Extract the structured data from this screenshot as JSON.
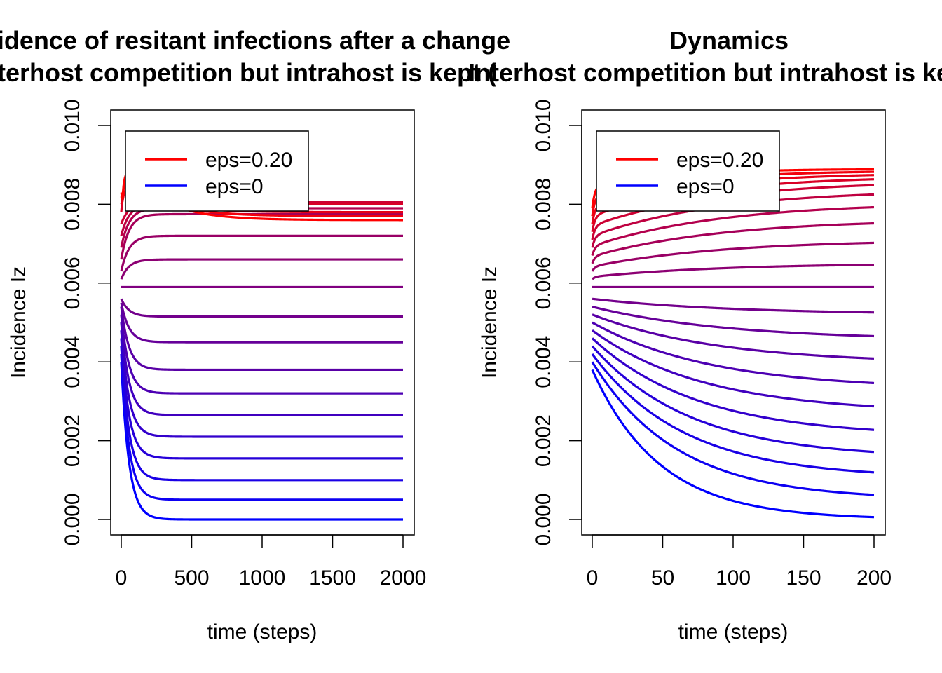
{
  "chart_data": [
    {
      "type": "line",
      "title_line1": "Incidence of resitant infections after a change",
      "title_line2": "Interhost competition but intrahost is kept (",
      "xlabel": "time (steps)",
      "ylabel": "Incidence Iz",
      "xlim": [
        0,
        2000
      ],
      "ylim": [
        0,
        0.01
      ],
      "x_ticks": [
        "0",
        "500",
        "1000",
        "1500",
        "2000"
      ],
      "x_tick_values": [
        0,
        500,
        1000,
        1500,
        2000
      ],
      "y_ticks": [
        "0.000",
        "0.002",
        "0.004",
        "0.006",
        "0.008",
        "0.010"
      ],
      "y_tick_values": [
        0,
        0.002,
        0.004,
        0.006,
        0.008,
        0.01
      ],
      "grid": false,
      "legend_position": "top-left",
      "legend": [
        {
          "label": "eps=0.20",
          "color": "#ff0000"
        },
        {
          "label": "eps=0",
          "color": "#0000ff"
        }
      ],
      "tau": 55,
      "series": [
        {
          "eps_index": 0,
          "start": 0.004,
          "end": 0.0
        },
        {
          "eps_index": 1,
          "start": 0.0042,
          "end": 0.0005
        },
        {
          "eps_index": 2,
          "start": 0.0044,
          "end": 0.001
        },
        {
          "eps_index": 3,
          "start": 0.0046,
          "end": 0.00155
        },
        {
          "eps_index": 4,
          "start": 0.0048,
          "end": 0.0021
        },
        {
          "eps_index": 5,
          "start": 0.005,
          "end": 0.00265
        },
        {
          "eps_index": 6,
          "start": 0.0052,
          "end": 0.0032
        },
        {
          "eps_index": 7,
          "start": 0.0054,
          "end": 0.0038
        },
        {
          "eps_index": 8,
          "start": 0.0055,
          "end": 0.0045
        },
        {
          "eps_index": 9,
          "start": 0.0056,
          "end": 0.00515
        },
        {
          "eps_index": 10,
          "start": 0.0059,
          "end": 0.0059
        },
        {
          "eps_index": 11,
          "start": 0.0061,
          "end": 0.0066
        },
        {
          "eps_index": 12,
          "start": 0.0063,
          "end": 0.0072
        },
        {
          "eps_index": 13,
          "start": 0.0066,
          "end": 0.00775
        },
        {
          "eps_index": 14,
          "start": 0.0069,
          "end": 0.0079
        },
        {
          "eps_index": 15,
          "start": 0.0072,
          "end": 0.008
        },
        {
          "eps_index": 16,
          "start": 0.0075,
          "end": 0.00805
        },
        {
          "eps_index": 17,
          "start": 0.0078,
          "end": 0.008
        },
        {
          "eps_index": 18,
          "start": 0.008,
          "end": 0.0078
        },
        {
          "eps_index": 19,
          "start": 0.0082,
          "end": 0.0077
        },
        {
          "eps_index": 20,
          "start": 0.0083,
          "end": 0.0076
        }
      ]
    },
    {
      "type": "line",
      "title_line1": "Dynamics",
      "title_line2": "Interhost competition but intrahost is kept (",
      "xlabel": "time (steps)",
      "ylabel": "Incidence Iz",
      "xlim": [
        0,
        200
      ],
      "ylim": [
        0,
        0.01
      ],
      "x_ticks": [
        "0",
        "50",
        "100",
        "150",
        "200"
      ],
      "x_tick_values": [
        0,
        50,
        100,
        150,
        200
      ],
      "y_ticks": [
        "0.000",
        "0.002",
        "0.004",
        "0.006",
        "0.008",
        "0.010"
      ],
      "y_tick_values": [
        0,
        0.002,
        0.004,
        0.006,
        0.008,
        0.01
      ],
      "grid": false,
      "legend_position": "top-left",
      "legend": [
        {
          "label": "eps=0.20",
          "color": "#ff0000"
        },
        {
          "label": "eps=0",
          "color": "#0000ff"
        }
      ],
      "series": [
        {
          "eps_index": 0,
          "start": 0.0038,
          "end": 0.0,
          "tau": 48
        },
        {
          "eps_index": 1,
          "start": 0.004,
          "end": 0.0005,
          "tau": 60
        },
        {
          "eps_index": 2,
          "start": 0.0042,
          "end": 0.00105,
          "tau": 65
        },
        {
          "eps_index": 3,
          "start": 0.0044,
          "end": 0.00155,
          "tau": 70
        },
        {
          "eps_index": 4,
          "start": 0.0046,
          "end": 0.0021,
          "tau": 75
        },
        {
          "eps_index": 5,
          "start": 0.0048,
          "end": 0.0027,
          "tau": 80
        },
        {
          "eps_index": 6,
          "start": 0.005,
          "end": 0.0033,
          "tau": 85
        },
        {
          "eps_index": 7,
          "start": 0.0052,
          "end": 0.00395,
          "tau": 90
        },
        {
          "eps_index": 8,
          "start": 0.0054,
          "end": 0.00455,
          "tau": 95
        },
        {
          "eps_index": 9,
          "start": 0.0056,
          "end": 0.0052,
          "tau": 100
        },
        {
          "eps_index": 10,
          "start": 0.0059,
          "end": 0.0059,
          "tau": 100
        },
        {
          "eps_index": 11,
          "start": 0.0061,
          "end": 0.00648,
          "tau": 100
        },
        {
          "eps_index": 12,
          "start": 0.0063,
          "end": 0.00705,
          "tau": 100
        },
        {
          "eps_index": 13,
          "start": 0.0065,
          "end": 0.00755,
          "tau": 100
        },
        {
          "eps_index": 14,
          "start": 0.0067,
          "end": 0.00795,
          "tau": 100
        },
        {
          "eps_index": 15,
          "start": 0.0069,
          "end": 0.00825,
          "tau": 100
        },
        {
          "eps_index": 16,
          "start": 0.0071,
          "end": 0.00845,
          "tau": 100
        },
        {
          "eps_index": 17,
          "start": 0.0073,
          "end": 0.00855,
          "tau": 100
        },
        {
          "eps_index": 18,
          "start": 0.0075,
          "end": 0.0086,
          "tau": 100
        },
        {
          "eps_index": 19,
          "start": 0.0077,
          "end": 0.00862,
          "tau": 100
        },
        {
          "eps_index": 20,
          "start": 0.0079,
          "end": 0.00862,
          "tau": 100
        }
      ]
    }
  ]
}
